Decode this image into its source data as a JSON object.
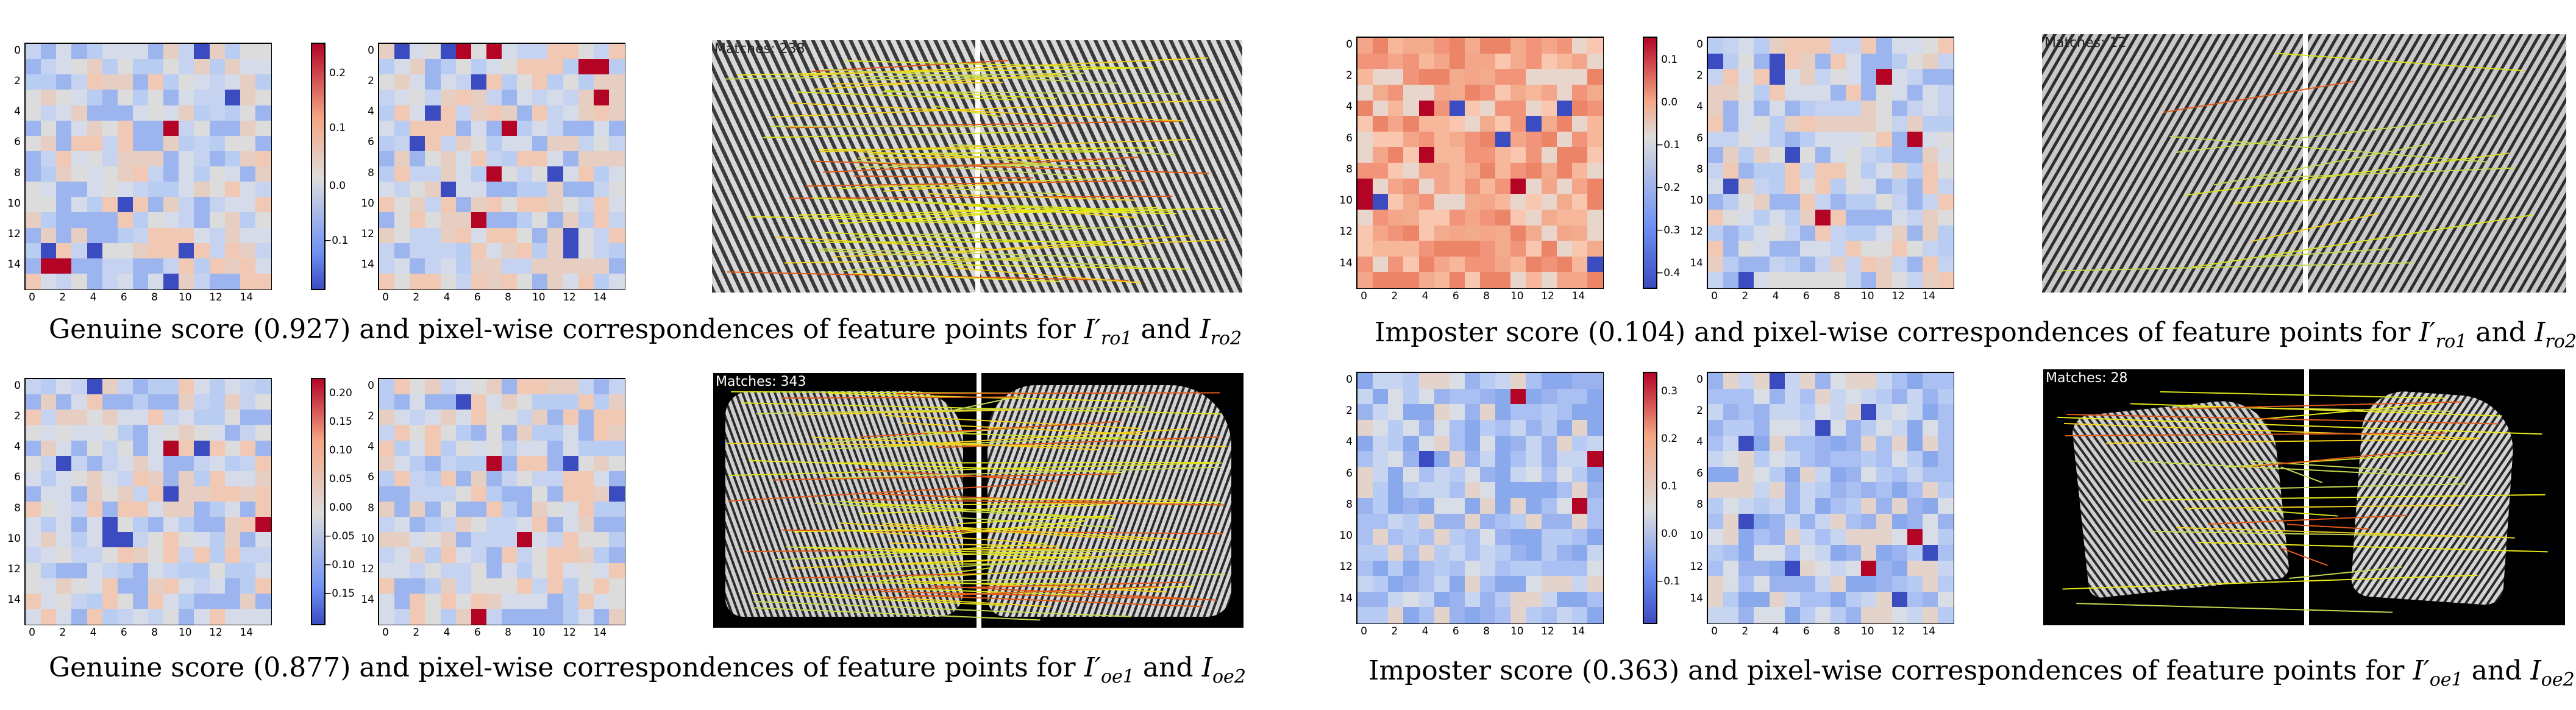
{
  "heatmap_ticks": [
    "0",
    "2",
    "4",
    "6",
    "8",
    "10",
    "12",
    "14"
  ],
  "panels": [
    {
      "id": "tl",
      "colorbar_ticks": [
        "0.2",
        "0.1",
        "0.0",
        "−0.1"
      ],
      "matches_label": "Matches: 238",
      "caption_prefix": "Genuine score (0.927) and pixel-wise correspondences of feature points for",
      "caption_conj": "and",
      "sym_a": "I′",
      "sub_a": "ro1",
      "sym_b": "I",
      "sub_b": "ro2"
    },
    {
      "id": "tr",
      "colorbar_ticks": [
        "0.1",
        "0.0",
        "−0.1",
        "−0.2",
        "−0.3",
        "−0.4"
      ],
      "matches_label": "Matches: 12",
      "caption_prefix": "Imposter score (0.104) and pixel-wise correspondences of feature points for",
      "caption_conj": "and",
      "sym_a": "I′",
      "sub_a": "ro1",
      "sym_b": "I",
      "sub_b": "ro2"
    },
    {
      "id": "bl",
      "colorbar_ticks": [
        "0.20",
        "0.15",
        "0.10",
        "0.05",
        "0.00",
        "−0.05",
        "−0.10",
        "−0.15"
      ],
      "matches_label": "Matches: 343",
      "caption_prefix": "Genuine score (0.877) and pixel-wise correspondences of feature points for",
      "caption_conj": "and",
      "sym_a": "I′",
      "sub_a": "oe1",
      "sym_b": "I",
      "sub_b": "oe2"
    },
    {
      "id": "br",
      "colorbar_ticks": [
        "0.3",
        "0.2",
        "0.1",
        "0.0",
        "−0.1"
      ],
      "matches_label": "Matches: 28",
      "caption_prefix": "Imposter score (0.363) and  pixel-wise correspondences of feature points for",
      "caption_conj": "and",
      "sym_a": "I′",
      "sub_a": "oe1",
      "sym_b": "I",
      "sub_b": "oe2"
    }
  ]
}
